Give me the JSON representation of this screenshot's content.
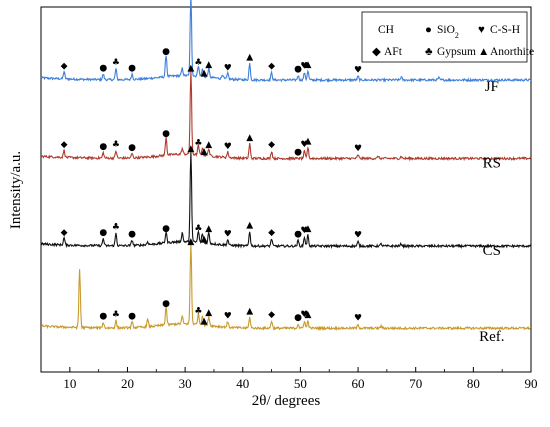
{
  "chart_data": {
    "type": "line",
    "title": "",
    "xlabel": "2θ/ degrees",
    "ylabel": "Intensity/a.u.",
    "xlim": [
      5,
      90
    ],
    "x_ticks": [
      10,
      20,
      30,
      40,
      50,
      60,
      70,
      80,
      90
    ],
    "grid": false,
    "legend": {
      "placement": "top-right",
      "entries": [
        {
          "symbol": "CH",
          "label": "",
          "symbol_kind": "text"
        },
        {
          "symbol": "●",
          "label": "SiO",
          "subscript": "2",
          "symbol_kind": "circle"
        },
        {
          "symbol": "♥",
          "label": "C-S-H",
          "symbol_kind": "heart"
        },
        {
          "symbol": "◆",
          "label": "AFt",
          "symbol_kind": "diamond"
        },
        {
          "symbol": "♣",
          "label": "Gypsum",
          "symbol_kind": "club"
        },
        {
          "symbol": "▲",
          "label": "Anorthite",
          "symbol_kind": "triangle"
        }
      ]
    },
    "series": [
      {
        "name": "JF",
        "color": "#3f7fd8",
        "baseline": 0.8,
        "peaks": [
          [
            9.0,
            0.02
          ],
          [
            15.8,
            0.015
          ],
          [
            18.0,
            0.03
          ],
          [
            20.8,
            0.015
          ],
          [
            26.7,
            0.06
          ],
          [
            29.5,
            0.02
          ],
          [
            31.0,
            0.22
          ],
          [
            32.3,
            0.03
          ],
          [
            33.0,
            0.02
          ],
          [
            34.1,
            0.025
          ],
          [
            36.5,
            0.012
          ],
          [
            37.4,
            0.015
          ],
          [
            41.2,
            0.045
          ],
          [
            45.0,
            0.02
          ],
          [
            49.6,
            0.012
          ],
          [
            50.7,
            0.02
          ],
          [
            51.3,
            0.025
          ],
          [
            60.0,
            0.01
          ],
          [
            67.5,
            0.008
          ],
          [
            74.0,
            0.006
          ]
        ]
      },
      {
        "name": "RS",
        "color": "#b03a2e",
        "baseline": 0.585,
        "peaks": [
          [
            9.0,
            0.02
          ],
          [
            15.8,
            0.015
          ],
          [
            18.0,
            0.02
          ],
          [
            20.8,
            0.012
          ],
          [
            26.7,
            0.05
          ],
          [
            29.5,
            0.015
          ],
          [
            31.0,
            0.23
          ],
          [
            32.3,
            0.025
          ],
          [
            33.0,
            0.02
          ],
          [
            34.1,
            0.02
          ],
          [
            37.4,
            0.015
          ],
          [
            41.2,
            0.04
          ],
          [
            45.0,
            0.02
          ],
          [
            50.7,
            0.02
          ],
          [
            51.3,
            0.03
          ],
          [
            60.0,
            0.01
          ],
          [
            63.5,
            0.006
          ],
          [
            67.5,
            0.006
          ]
        ]
      },
      {
        "name": "CS",
        "color": "#111111",
        "baseline": 0.345,
        "peaks": [
          [
            9.0,
            0.02
          ],
          [
            15.8,
            0.02
          ],
          [
            18.0,
            0.035
          ],
          [
            20.8,
            0.015
          ],
          [
            23.5,
            0.008
          ],
          [
            26.7,
            0.03
          ],
          [
            29.5,
            0.025
          ],
          [
            31.0,
            0.25
          ],
          [
            32.3,
            0.03
          ],
          [
            33.0,
            0.025
          ],
          [
            34.1,
            0.03
          ],
          [
            37.4,
            0.015
          ],
          [
            41.2,
            0.04
          ],
          [
            45.0,
            0.02
          ],
          [
            49.6,
            0.015
          ],
          [
            50.7,
            0.025
          ],
          [
            51.3,
            0.03
          ],
          [
            60.0,
            0.012
          ],
          [
            64.0,
            0.006
          ],
          [
            67.5,
            0.006
          ]
        ]
      },
      {
        "name": "Ref.",
        "color": "#c89a2c",
        "baseline": 0.12,
        "peaks": [
          [
            11.7,
            0.16
          ],
          [
            15.8,
            0.015
          ],
          [
            18.0,
            0.02
          ],
          [
            20.8,
            0.015
          ],
          [
            23.5,
            0.02
          ],
          [
            26.7,
            0.05
          ],
          [
            29.5,
            0.02
          ],
          [
            31.0,
            0.22
          ],
          [
            32.3,
            0.03
          ],
          [
            33.0,
            0.025
          ],
          [
            34.1,
            0.025
          ],
          [
            37.4,
            0.015
          ],
          [
            41.2,
            0.03
          ],
          [
            45.0,
            0.02
          ],
          [
            49.6,
            0.012
          ],
          [
            50.7,
            0.02
          ],
          [
            51.3,
            0.02
          ],
          [
            60.0,
            0.01
          ],
          [
            64.0,
            0.006
          ]
        ]
      }
    ],
    "annotations": [
      {
        "series": "JF",
        "markers": [
          [
            9.0,
            "diamond"
          ],
          [
            15.8,
            "circle"
          ],
          [
            18.0,
            "club"
          ],
          [
            20.8,
            "circle"
          ],
          [
            26.7,
            "circle"
          ],
          [
            31.0,
            "triangle"
          ],
          [
            32.3,
            "club"
          ],
          [
            33.3,
            "triangle"
          ],
          [
            34.1,
            "triangle"
          ],
          [
            37.4,
            "heart"
          ],
          [
            41.2,
            "triangle"
          ],
          [
            45.0,
            "diamond"
          ],
          [
            49.6,
            "circle"
          ],
          [
            50.7,
            "heart"
          ],
          [
            51.3,
            "triangle"
          ],
          [
            60.0,
            "heart"
          ]
        ]
      },
      {
        "series": "RS",
        "markers": [
          [
            9.0,
            "diamond"
          ],
          [
            15.8,
            "circle"
          ],
          [
            18.0,
            "club"
          ],
          [
            20.8,
            "circle"
          ],
          [
            26.7,
            "circle"
          ],
          [
            31.0,
            "triangle"
          ],
          [
            32.3,
            "club"
          ],
          [
            33.3,
            "triangle"
          ],
          [
            34.1,
            "triangle"
          ],
          [
            37.4,
            "heart"
          ],
          [
            41.2,
            "triangle"
          ],
          [
            45.0,
            "diamond"
          ],
          [
            49.6,
            "circle"
          ],
          [
            50.7,
            "heart"
          ],
          [
            51.3,
            "triangle"
          ],
          [
            60.0,
            "heart"
          ]
        ]
      },
      {
        "series": "CS",
        "markers": [
          [
            9.0,
            "diamond"
          ],
          [
            15.8,
            "circle"
          ],
          [
            18.0,
            "club"
          ],
          [
            20.8,
            "circle"
          ],
          [
            26.7,
            "circle"
          ],
          [
            31.0,
            "triangle"
          ],
          [
            32.3,
            "club"
          ],
          [
            33.3,
            "triangle"
          ],
          [
            34.1,
            "triangle"
          ],
          [
            37.4,
            "heart"
          ],
          [
            41.2,
            "triangle"
          ],
          [
            45.0,
            "diamond"
          ],
          [
            49.6,
            "circle"
          ],
          [
            50.7,
            "heart"
          ],
          [
            51.3,
            "triangle"
          ],
          [
            60.0,
            "heart"
          ]
        ]
      },
      {
        "series": "Ref.",
        "markers": [
          [
            15.8,
            "circle"
          ],
          [
            18.0,
            "club"
          ],
          [
            20.8,
            "circle"
          ],
          [
            26.7,
            "circle"
          ],
          [
            31.0,
            "triangle"
          ],
          [
            32.3,
            "club"
          ],
          [
            33.3,
            "triangle"
          ],
          [
            34.1,
            "triangle"
          ],
          [
            37.4,
            "heart"
          ],
          [
            41.2,
            "triangle"
          ],
          [
            45.0,
            "diamond"
          ],
          [
            49.6,
            "circle"
          ],
          [
            50.7,
            "heart"
          ],
          [
            51.3,
            "triangle"
          ],
          [
            60.0,
            "heart"
          ]
        ]
      }
    ]
  }
}
